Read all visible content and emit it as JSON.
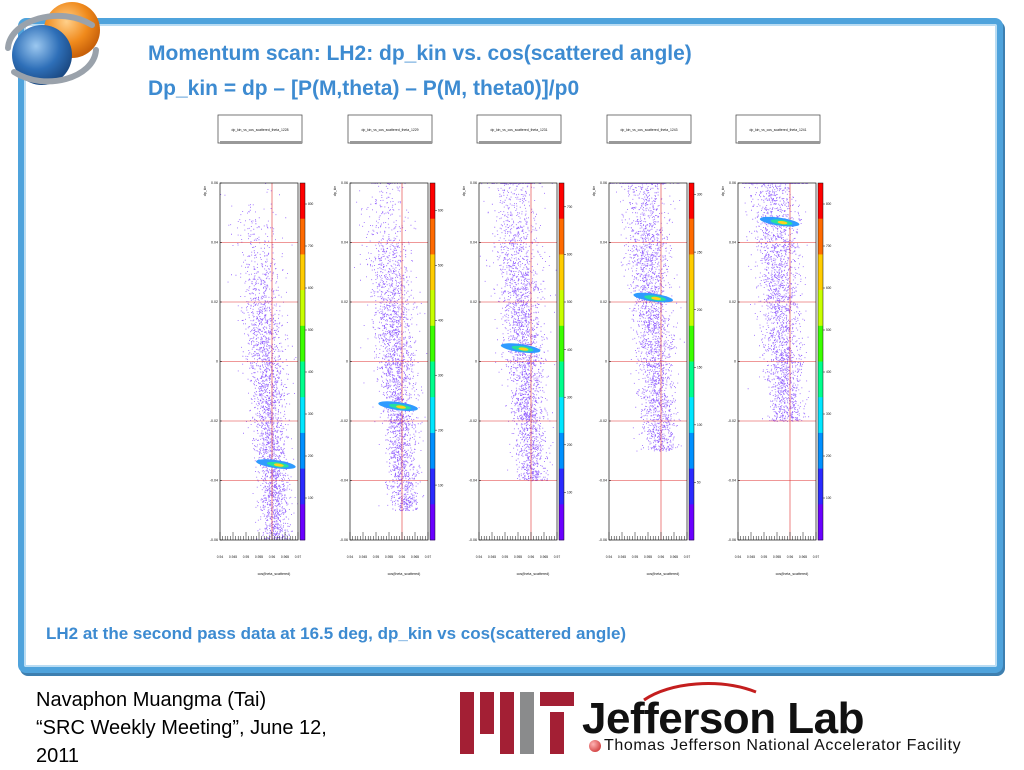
{
  "slide": {
    "title_line1": "Momentum scan: LH2: dp_kin vs. cos(scattered angle)",
    "title_line2": "Dp_kin = dp – [P(M,theta) – P(M, theta0)]/p0",
    "caption": "LH2 at the second pass data at 16.5 deg, dp_kin vs cos(scattered angle)",
    "author_line1": "Navaphon Muangma (Tai)",
    "author_line2": "“SRC Weekly Meeting”, June 12,",
    "author_line3": "2011"
  },
  "logos": {
    "jlab_name": "Jefferson Lab",
    "jlab_tagline": "Thomas Jefferson National Accelerator Facility",
    "jlab_red": "#c41e1e",
    "mit_red": "#a31f34",
    "mit_gray": "#8a8b8c"
  },
  "colors": {
    "title_blue": "#3d8bd1",
    "frame_blue": "#4fa3dc",
    "scatter_purple": "#6f2cff",
    "grid_red": "#e03030"
  },
  "chart_data": [
    {
      "type": "heatmap",
      "title": "dp_kin_vs_cos_scattered_theta_1228",
      "ylabel": "dp_kin",
      "xlabel": "cos(theta_scattered)",
      "xlim": [
        0.94,
        0.97
      ],
      "ylim": [
        -0.06,
        0.06
      ],
      "x_ticks": [
        "0.94",
        "0.945",
        "0.95",
        "0.955",
        "0.96",
        "0.965",
        "0.97"
      ],
      "y_ticks": [
        "0.06",
        "0.04",
        "0.02",
        "0",
        "-0.02",
        "-0.04",
        "-0.06"
      ],
      "z_ticks": [
        "800",
        "700",
        "600",
        "500",
        "400",
        "300",
        "200",
        "100"
      ],
      "zmax": 850,
      "peak": {
        "x": 0.9615,
        "y": -0.0345
      }
    },
    {
      "type": "heatmap",
      "title": "dp_kin_vs_cos_scattered_theta_1229",
      "ylabel": "dp_kin",
      "xlabel": "cos(theta_scattered)",
      "xlim": [
        0.94,
        0.97
      ],
      "ylim": [
        -0.06,
        0.06
      ],
      "x_ticks": [
        "0.94",
        "0.945",
        "0.95",
        "0.955",
        "0.96",
        "0.965",
        "0.97"
      ],
      "y_ticks": [
        "0.06",
        "0.04",
        "0.02",
        "0",
        "-0.02",
        "-0.04",
        "-0.06"
      ],
      "z_ticks": [
        "600",
        "500",
        "400",
        "300",
        "200",
        "100"
      ],
      "zmax": 650,
      "peak": {
        "x": 0.9585,
        "y": -0.015
      }
    },
    {
      "type": "heatmap",
      "title": "dp_kin_vs_cos_scattered_theta_1231",
      "ylabel": "dp_kin",
      "xlabel": "cos(theta_scattered)",
      "xlim": [
        0.94,
        0.97
      ],
      "ylim": [
        -0.06,
        0.06
      ],
      "x_ticks": [
        "0.94",
        "0.945",
        "0.95",
        "0.955",
        "0.96",
        "0.965",
        "0.97"
      ],
      "y_ticks": [
        "0.06",
        "0.04",
        "0.02",
        "0",
        "-0.02",
        "-0.04",
        "-0.06"
      ],
      "z_ticks": [
        "700",
        "600",
        "500",
        "400",
        "300",
        "200",
        "100"
      ],
      "zmax": 750,
      "peak": {
        "x": 0.956,
        "y": 0.0045
      }
    },
    {
      "type": "heatmap",
      "title": "dp_kin_vs_cos_scattered_theta_1243",
      "ylabel": "dp_kin",
      "xlabel": "cos(theta_scattered)",
      "xlim": [
        0.94,
        0.97
      ],
      "ylim": [
        -0.06,
        0.06
      ],
      "x_ticks": [
        "0.94",
        "0.945",
        "0.95",
        "0.955",
        "0.96",
        "0.965",
        "0.97"
      ],
      "y_ticks": [
        "0.06",
        "0.04",
        "0.02",
        "0",
        "-0.02",
        "-0.04",
        "-0.06"
      ],
      "z_ticks": [
        "300",
        "250",
        "200",
        "150",
        "100",
        "50"
      ],
      "zmax": 310,
      "peak": {
        "x": 0.957,
        "y": 0.0215
      }
    },
    {
      "type": "heatmap",
      "title": "dp_kin_vs_cos_scattered_theta_1241",
      "ylabel": "dp_kin",
      "xlabel": "cos(theta_scattered)",
      "xlim": [
        0.94,
        0.97
      ],
      "ylim": [
        -0.06,
        0.06
      ],
      "x_ticks": [
        "0.94",
        "0.945",
        "0.95",
        "0.955",
        "0.96",
        "0.965",
        "0.97"
      ],
      "y_ticks": [
        "0.06",
        "0.04",
        "0.02",
        "0",
        "-0.02",
        "-0.04",
        "-0.06"
      ],
      "z_ticks": [
        "800",
        "700",
        "600",
        "500",
        "400",
        "300",
        "200",
        "100"
      ],
      "zmax": 850,
      "peak": {
        "x": 0.956,
        "y": 0.047
      }
    }
  ]
}
